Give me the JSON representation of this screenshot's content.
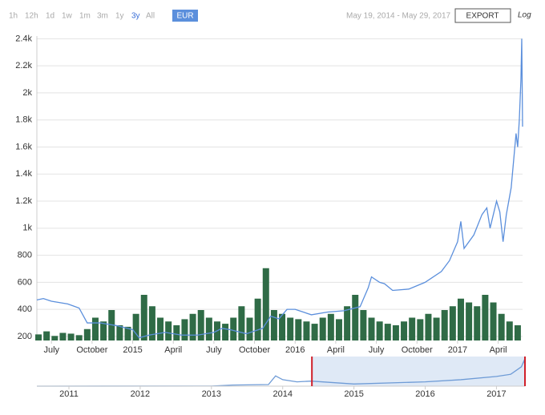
{
  "toolbar": {
    "ranges": [
      "1h",
      "12h",
      "1d",
      "1w",
      "1m",
      "3m",
      "1y",
      "3y",
      "All"
    ],
    "active_range": 7,
    "currency": "EUR",
    "date_range": "May 19, 2014 - May 29, 2017",
    "export": "EXPORT",
    "log": "Log"
  },
  "chart_data": [
    {
      "type": "line",
      "grid": true,
      "xlim": [
        2014.41,
        2017.4
      ],
      "ylim": [
        170,
        2420
      ],
      "xticks": [
        {
          "value": 2014.5,
          "label": "July"
        },
        {
          "value": 2014.75,
          "label": "October"
        },
        2015,
        {
          "value": 2015.25,
          "label": "April"
        },
        {
          "value": 2015.5,
          "label": "July"
        },
        {
          "value": 2015.75,
          "label": "October"
        },
        2016,
        {
          "value": 2016.25,
          "label": "April"
        },
        {
          "value": 2016.5,
          "label": "July"
        },
        {
          "value": 2016.75,
          "label": "October"
        },
        2017,
        {
          "value": 2017.25,
          "label": "April"
        }
      ],
      "yticks": [
        200,
        400,
        600,
        800,
        {
          "value": 1000,
          "label": "1k"
        },
        {
          "value": 1200,
          "label": "1.2k"
        },
        {
          "value": 1400,
          "label": "1.4k"
        },
        {
          "value": 1600,
          "label": "1.6k"
        },
        {
          "value": 1800,
          "label": "1.8k"
        },
        {
          "value": 2000,
          "label": "2k"
        },
        {
          "value": 2200,
          "label": "2.2k"
        },
        {
          "value": 2400,
          "label": "2.4k"
        }
      ],
      "x": [
        2014.41,
        2014.45,
        2014.5,
        2014.6,
        2014.67,
        2014.72,
        2014.8,
        2014.9,
        2015.0,
        2015.04,
        2015.1,
        2015.2,
        2015.3,
        2015.4,
        2015.5,
        2015.55,
        2015.6,
        2015.7,
        2015.8,
        2015.85,
        2015.9,
        2015.95,
        2016.0,
        2016.05,
        2016.1,
        2016.2,
        2016.3,
        2016.4,
        2016.45,
        2016.47,
        2016.52,
        2016.55,
        2016.6,
        2016.7,
        2016.8,
        2016.9,
        2016.95,
        2017.0,
        2017.02,
        2017.04,
        2017.1,
        2017.15,
        2017.18,
        2017.2,
        2017.24,
        2017.26,
        2017.28,
        2017.3,
        2017.33,
        2017.36,
        2017.37,
        2017.38,
        2017.39,
        2017.395,
        2017.4
      ],
      "series": [
        {
          "color": "#5b8fdc",
          "values": [
            470,
            480,
            460,
            440,
            410,
            300,
            300,
            280,
            250,
            190,
            210,
            230,
            210,
            210,
            230,
            260,
            250,
            220,
            260,
            350,
            330,
            400,
            400,
            380,
            360,
            380,
            390,
            420,
            560,
            640,
            600,
            590,
            540,
            550,
            600,
            680,
            760,
            900,
            1050,
            850,
            950,
            1100,
            1150,
            1000,
            1200,
            1120,
            900,
            1100,
            1300,
            1700,
            1600,
            1800,
            2100,
            2400,
            1750
          ]
        }
      ],
      "volume": {
        "color": "#2f6b46",
        "axis": "y2",
        "x": [
          2014.42,
          2014.47,
          2014.52,
          2014.57,
          2014.62,
          2014.67,
          2014.72,
          2014.77,
          2014.82,
          2014.87,
          2014.92,
          2014.97,
          2015.02,
          2015.07,
          2015.12,
          2015.17,
          2015.22,
          2015.27,
          2015.32,
          2015.37,
          2015.42,
          2015.47,
          2015.52,
          2015.57,
          2015.62,
          2015.67,
          2015.72,
          2015.77,
          2015.82,
          2015.87,
          2015.92,
          2015.97,
          2016.02,
          2016.07,
          2016.12,
          2016.17,
          2016.22,
          2016.27,
          2016.32,
          2016.37,
          2016.42,
          2016.47,
          2016.52,
          2016.57,
          2016.62,
          2016.67,
          2016.72,
          2016.77,
          2016.82,
          2016.87,
          2016.92,
          2016.97,
          2017.02,
          2017.07,
          2017.12,
          2017.17,
          2017.22,
          2017.27,
          2017.32,
          2017.37
        ],
        "values": [
          8,
          12,
          6,
          10,
          9,
          7,
          15,
          30,
          25,
          40,
          20,
          18,
          35,
          60,
          45,
          30,
          25,
          20,
          28,
          35,
          40,
          30,
          25,
          22,
          30,
          45,
          30,
          55,
          95,
          40,
          35,
          30,
          28,
          25,
          22,
          30,
          35,
          28,
          45,
          60,
          40,
          30,
          25,
          22,
          20,
          25,
          30,
          28,
          35,
          30,
          40,
          45,
          55,
          50,
          45,
          60,
          50,
          35,
          25,
          20
        ]
      },
      "y2lim": [
        0,
        400
      ]
    },
    {
      "type": "navigator",
      "xlim": [
        2010.55,
        2017.4
      ],
      "ylim": [
        0,
        2600
      ],
      "xticks": [
        2011,
        2012,
        2013,
        2014,
        2015,
        2016,
        2017
      ],
      "x": [
        2010.55,
        2013.0,
        2013.3,
        2013.8,
        2013.9,
        2014.0,
        2014.2,
        2014.4,
        2015.0,
        2016.0,
        2016.5,
        2017.0,
        2017.2,
        2017.35,
        2017.39,
        2017.4
      ],
      "series": [
        {
          "color": "#6e9bd6",
          "values": [
            0,
            10,
            100,
            150,
            950,
            600,
            400,
            470,
            200,
            400,
            600,
            900,
            1100,
            1800,
            2400,
            1750
          ]
        }
      ],
      "selection": [
        2014.41,
        2017.4
      ]
    }
  ]
}
